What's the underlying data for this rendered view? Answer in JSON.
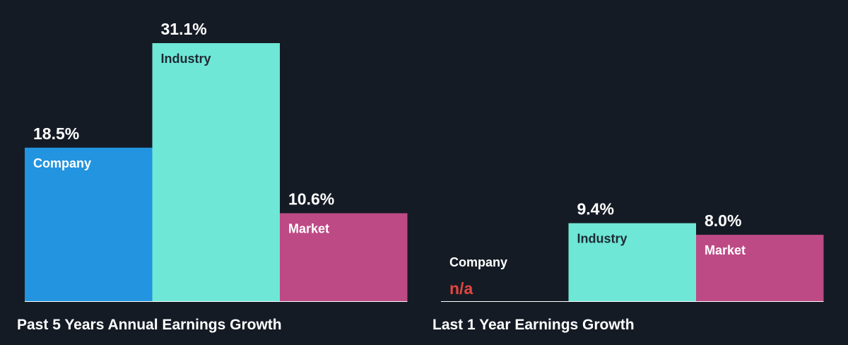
{
  "chart_data": [
    {
      "type": "bar",
      "title": "Past 5 Years Annual Earnings Growth",
      "unit": "%",
      "categories": [
        "Company",
        "Industry",
        "Market"
      ],
      "values": [
        18.5,
        31.1,
        10.6
      ],
      "value_labels": [
        "18.5%",
        "31.1%",
        "10.6%"
      ],
      "colors": [
        "#2394e0",
        "#6ee7d6",
        "#bd4a85"
      ],
      "grid": false
    },
    {
      "type": "bar",
      "title": "Last 1 Year Earnings Growth",
      "unit": "%",
      "categories": [
        "Company",
        "Industry",
        "Market"
      ],
      "values": [
        null,
        9.4,
        8.0
      ],
      "value_labels": [
        "n/a",
        "9.4%",
        "8.0%"
      ],
      "colors": [
        "#2394e0",
        "#6ee7d6",
        "#bd4a85"
      ],
      "grid": false
    }
  ],
  "colors": {
    "background": "#151b24",
    "text": "#ffffff",
    "missing_value": "#e2473f",
    "dark_label": "#1e2a33"
  }
}
